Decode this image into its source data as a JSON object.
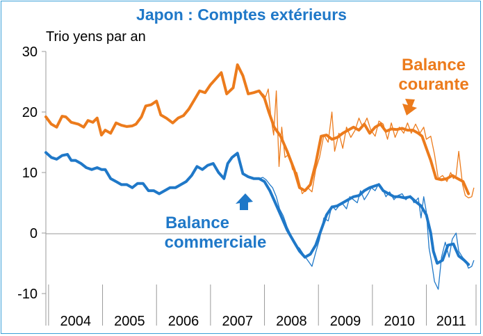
{
  "chart_data": {
    "type": "line",
    "title": "Japon : Comptes extérieurs",
    "ylabel": "Trio yens par an",
    "ylim": [
      -10,
      30
    ],
    "yticks": [
      "30",
      "20",
      "10",
      "0",
      "-10"
    ],
    "xlim": [
      2003.95,
      2011.92
    ],
    "categories": [
      "2004",
      "2005",
      "2006",
      "2007",
      "2008",
      "2009",
      "2010",
      "2011"
    ],
    "grid": false,
    "colors": {
      "courante": "#ec7b1c",
      "commerciale": "#1f78c8",
      "title": "#1f78c8",
      "border": "#3aa0d8"
    },
    "annotations": [
      {
        "text": "Balance courante",
        "series": "courante",
        "arrow": "down"
      },
      {
        "text": "Balance commerciale",
        "series": "commerciale",
        "arrow": "up"
      }
    ],
    "series": [
      {
        "name": "Balance courante",
        "smoothed": {
          "x": [
            2003.95,
            2004.05,
            2004.15,
            2004.25,
            2004.32,
            2004.42,
            2004.55,
            2004.65,
            2004.73,
            2004.82,
            2004.9,
            2004.98,
            2005.05,
            2005.15,
            2005.25,
            2005.35,
            2005.45,
            2005.55,
            2005.62,
            2005.72,
            2005.8,
            2005.9,
            2006.0,
            2006.08,
            2006.18,
            2006.3,
            2006.4,
            2006.5,
            2006.6,
            2006.7,
            2006.8,
            2006.9,
            2007.0,
            2007.1,
            2007.2,
            2007.3,
            2007.42,
            2007.5,
            2007.6,
            2007.7,
            2007.8,
            2007.9,
            2008.0,
            2008.08,
            2008.18,
            2008.3,
            2008.42,
            2008.55,
            2008.65,
            2008.75,
            2008.85,
            2008.95,
            2009.05,
            2009.15,
            2009.25,
            2009.35,
            2009.45,
            2009.55,
            2009.65,
            2009.75,
            2009.85,
            2009.95,
            2010.05,
            2010.15,
            2010.25,
            2010.35,
            2010.45,
            2010.55,
            2010.65,
            2010.75,
            2010.85,
            2010.92,
            2011.0,
            2011.08,
            2011.18,
            2011.28,
            2011.38,
            2011.48,
            2011.58,
            2011.68,
            2011.78
          ],
          "y": [
            19.2,
            18.0,
            17.5,
            19.3,
            19.2,
            18.3,
            18.0,
            17.5,
            18.6,
            18.3,
            19.0,
            16.2,
            17.0,
            16.5,
            18.2,
            17.8,
            17.6,
            17.7,
            18.0,
            19.2,
            21.0,
            21.2,
            21.8,
            19.5,
            19.0,
            18.2,
            19.0,
            19.4,
            20.5,
            22.0,
            23.5,
            23.2,
            24.5,
            25.5,
            26.5,
            23.0,
            24.0,
            27.8,
            26.0,
            23.0,
            23.2,
            23.5,
            22.3,
            20.0,
            17.5,
            16.0,
            13.5,
            10.5,
            7.5,
            7.0,
            8.0,
            11.5,
            16.0,
            16.2,
            15.5,
            15.8,
            16.5,
            17.0,
            17.5,
            17.0,
            18.0,
            16.5,
            17.5,
            18.0,
            16.8,
            17.2,
            17.1,
            17.3,
            17.0,
            17.0,
            16.5,
            16.0,
            14.0,
            12.0,
            9.0,
            8.8,
            9.0,
            9.5,
            9.0,
            8.5,
            6.5
          ]
        },
        "raw": {
          "x": [
            2007.9,
            2007.97,
            2008.02,
            2008.07,
            2008.12,
            2008.17,
            2008.22,
            2008.27,
            2008.32,
            2008.38,
            2008.45,
            2008.52,
            2008.6,
            2008.7,
            2008.8,
            2008.88,
            2008.95,
            2009.02,
            2009.1,
            2009.18,
            2009.25,
            2009.3,
            2009.38,
            2009.45,
            2009.52,
            2009.6,
            2009.68,
            2009.75,
            2009.82,
            2009.9,
            2009.97,
            2010.05,
            2010.12,
            2010.2,
            2010.28,
            2010.35,
            2010.42,
            2010.5,
            2010.58,
            2010.65,
            2010.72,
            2010.8,
            2010.88,
            2010.95,
            2011.0,
            2011.08,
            2011.15,
            2011.22,
            2011.3,
            2011.38,
            2011.45,
            2011.5,
            2011.55,
            2011.6,
            2011.67,
            2011.72,
            2011.78,
            2011.84,
            2011.88
          ],
          "y": [
            23.2,
            23.0,
            22.5,
            23.8,
            19.0,
            16.2,
            23.5,
            11.0,
            17.5,
            12.5,
            13.0,
            10.5,
            10.0,
            6.5,
            7.5,
            6.8,
            10.5,
            12.5,
            16.2,
            15.0,
            20.0,
            13.5,
            16.5,
            14.0,
            17.5,
            15.8,
            17.0,
            19.0,
            17.5,
            19.0,
            17.0,
            16.0,
            18.5,
            18.0,
            15.5,
            18.2,
            15.8,
            17.5,
            16.5,
            18.2,
            16.5,
            18.0,
            16.5,
            17.5,
            15.5,
            16.0,
            13.0,
            9.0,
            9.5,
            8.5,
            10.0,
            9.0,
            9.5,
            13.5,
            8.0,
            6.2,
            5.8,
            6.0,
            7.5
          ]
        }
      },
      {
        "name": "Balance commerciale",
        "smoothed": {
          "x": [
            2003.95,
            2004.05,
            2004.15,
            2004.25,
            2004.35,
            2004.42,
            2004.5,
            2004.6,
            2004.7,
            2004.8,
            2004.9,
            2004.98,
            2005.05,
            2005.15,
            2005.25,
            2005.35,
            2005.45,
            2005.55,
            2005.65,
            2005.75,
            2005.85,
            2005.95,
            2006.05,
            2006.15,
            2006.25,
            2006.35,
            2006.45,
            2006.55,
            2006.65,
            2006.75,
            2006.85,
            2006.95,
            2007.05,
            2007.15,
            2007.25,
            2007.32,
            2007.4,
            2007.5,
            2007.6,
            2007.7,
            2007.8,
            2007.9,
            2008.0,
            2008.1,
            2008.2,
            2008.3,
            2008.42,
            2008.55,
            2008.65,
            2008.75,
            2008.85,
            2008.95,
            2009.05,
            2009.15,
            2009.25,
            2009.35,
            2009.45,
            2009.55,
            2009.65,
            2009.75,
            2009.85,
            2009.95,
            2010.05,
            2010.12,
            2010.2,
            2010.3,
            2010.4,
            2010.5,
            2010.6,
            2010.7,
            2010.8,
            2010.9,
            2011.0,
            2011.08,
            2011.13,
            2011.2,
            2011.3,
            2011.4,
            2011.5,
            2011.6,
            2011.7,
            2011.78
          ],
          "y": [
            13.3,
            12.5,
            12.2,
            12.8,
            13.0,
            12.0,
            12.0,
            11.5,
            10.8,
            10.5,
            10.8,
            10.5,
            10.5,
            9.0,
            8.5,
            8.0,
            8.0,
            7.5,
            8.2,
            8.2,
            7.0,
            7.0,
            6.5,
            7.0,
            7.5,
            7.5,
            8.0,
            8.5,
            9.5,
            11.0,
            10.5,
            11.2,
            11.5,
            10.0,
            9.0,
            11.5,
            12.5,
            13.2,
            9.8,
            9.3,
            9.0,
            9.0,
            8.5,
            7.0,
            5.0,
            3.0,
            0.5,
            -1.5,
            -3.0,
            -4.0,
            -3.5,
            -2.0,
            0.5,
            3.0,
            4.3,
            4.5,
            5.0,
            5.5,
            6.0,
            6.2,
            7.0,
            7.5,
            7.8,
            8.0,
            7.0,
            6.5,
            6.0,
            6.0,
            5.8,
            6.0,
            5.2,
            4.5,
            3.0,
            0.0,
            -3.0,
            -5.0,
            -4.5,
            -2.0,
            -1.8,
            -3.8,
            -4.5,
            -5.2
          ]
        },
        "raw": {
          "x": [
            2007.9,
            2007.97,
            2008.03,
            2008.1,
            2008.15,
            2008.22,
            2008.28,
            2008.35,
            2008.42,
            2008.5,
            2008.58,
            2008.65,
            2008.72,
            2008.8,
            2008.88,
            2008.95,
            2009.02,
            2009.1,
            2009.18,
            2009.25,
            2009.32,
            2009.38,
            2009.45,
            2009.52,
            2009.58,
            2009.65,
            2009.72,
            2009.78,
            2009.85,
            2009.92,
            2009.98,
            2010.05,
            2010.12,
            2010.18,
            2010.25,
            2010.32,
            2010.4,
            2010.47,
            2010.55,
            2010.62,
            2010.7,
            2010.77,
            2010.85,
            2010.9,
            2010.95,
            2011.0,
            2011.05,
            2011.1,
            2011.15,
            2011.22,
            2011.28,
            2011.35,
            2011.42,
            2011.48,
            2011.55,
            2011.6,
            2011.67,
            2011.72,
            2011.78,
            2011.84,
            2011.88
          ],
          "y": [
            9.0,
            9.2,
            8.8,
            8.0,
            7.5,
            6.0,
            4.0,
            2.8,
            1.0,
            -0.5,
            -2.0,
            -2.5,
            -3.5,
            -4.5,
            -5.5,
            -3.2,
            -1.0,
            2.5,
            2.0,
            4.5,
            3.8,
            4.5,
            4.8,
            4.0,
            6.0,
            5.5,
            5.0,
            7.0,
            5.5,
            6.5,
            7.5,
            7.0,
            8.2,
            7.5,
            6.0,
            6.8,
            5.5,
            6.2,
            6.5,
            5.5,
            6.2,
            5.0,
            5.8,
            2.5,
            6.0,
            3.5,
            -2.5,
            -5.0,
            -8.0,
            -9.3,
            -4.0,
            -1.5,
            -4.0,
            -1.0,
            0.0,
            -3.0,
            -4.0,
            -4.5,
            -5.8,
            -5.5,
            -4.5
          ]
        }
      }
    ]
  }
}
